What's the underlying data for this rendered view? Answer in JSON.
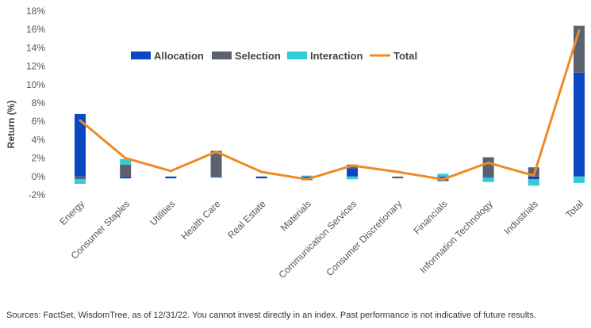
{
  "chart_data": {
    "type": "bar",
    "stacked": true,
    "title": "",
    "xlabel": "",
    "ylabel": "Return (%)",
    "ylim": [
      -2,
      18
    ],
    "yticks": [
      -2,
      0,
      2,
      4,
      6,
      8,
      10,
      12,
      14,
      16,
      18
    ],
    "ytick_labels": [
      "-2%",
      "0%",
      "2%",
      "4%",
      "6%",
      "8%",
      "10%",
      "12%",
      "14%",
      "16%",
      "18%"
    ],
    "grid": false,
    "legend_position": "top-center",
    "categories": [
      "Energy",
      "Consumer Staples",
      "Utilities",
      "Health Care",
      "Real Estate",
      "Materials",
      "Communication Services",
      "Consumer Discretionary",
      "Financials",
      "Information Technology",
      "Industrials",
      "Total"
    ],
    "series": [
      {
        "name": "Allocation",
        "type": "bar",
        "color": "#0b47c2",
        "values": [
          6.8,
          -0.2,
          -0.2,
          -0.1,
          -0.2,
          -0.2,
          0.9,
          0.0,
          -0.2,
          -0.1,
          -0.3,
          11.3
        ]
      },
      {
        "name": "Selection",
        "type": "bar",
        "color": "#5a6270",
        "values": [
          -0.3,
          1.3,
          0.0,
          2.8,
          0.0,
          -0.2,
          0.4,
          -0.2,
          -0.3,
          2.1,
          1.0,
          5.1
        ]
      },
      {
        "name": "Interaction",
        "type": "bar",
        "color": "#33ccd6",
        "values": [
          -0.5,
          0.6,
          0.0,
          0.0,
          0.0,
          0.1,
          -0.3,
          0.0,
          0.3,
          -0.5,
          -0.7,
          -0.7
        ]
      },
      {
        "name": "Total",
        "type": "line",
        "color": "#f08a24",
        "values": [
          6.1,
          2.0,
          0.6,
          2.7,
          0.5,
          -0.3,
          1.2,
          0.5,
          -0.3,
          1.5,
          0.1,
          15.9
        ]
      }
    ]
  },
  "footnote": "Sources: FactSet, WisdomTree, as of 12/31/22. You cannot invest directly in an index. Past performance is not indicative of future results."
}
